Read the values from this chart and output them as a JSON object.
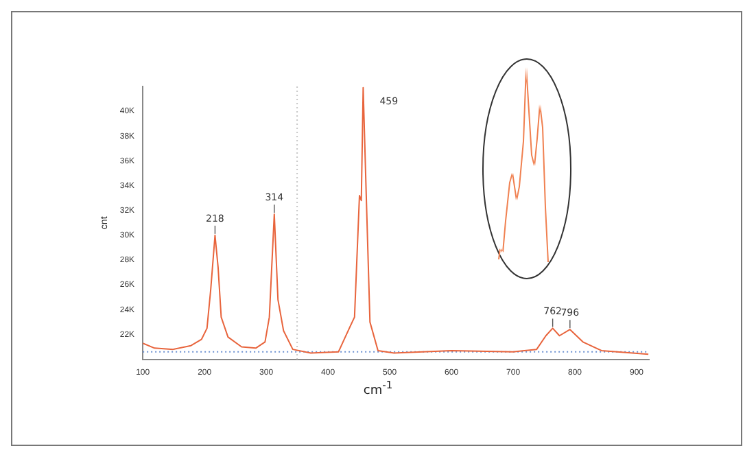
{
  "chart_data": {
    "type": "line",
    "xlabel": "cm$^{-1}$",
    "ylabel": "cnt",
    "x": [
      100,
      119,
      149,
      178,
      195,
      204,
      210,
      217,
      222,
      227,
      238,
      260,
      283,
      298,
      305,
      313,
      319,
      328,
      343,
      372,
      417,
      428,
      443,
      451,
      454,
      457,
      462,
      468,
      481,
      507,
      600,
      700,
      738,
      753,
      764,
      775,
      792,
      813,
      843,
      919
    ],
    "series": [
      {
        "color": "#e8643c",
        "values": [
          21300,
          20900,
          20800,
          21100,
          21600,
          22500,
          25600,
          30000,
          27400,
          23400,
          21800,
          21000,
          20900,
          21400,
          23400,
          31700,
          24800,
          22300,
          20800,
          20500,
          20600,
          21800,
          23400,
          33200,
          32800,
          41900,
          33200,
          23000,
          20700,
          20500,
          20700,
          20600,
          20800,
          21900,
          22500,
          21900,
          22400,
          21400,
          20700,
          20400
        ]
      }
    ],
    "xlim": [
      100,
      920
    ],
    "xticks": [
      100,
      200,
      300,
      400,
      500,
      600,
      700,
      800,
      900
    ],
    "ylim": [
      20000,
      42000
    ],
    "yticks": [
      {
        "value": 22000,
        "label": "22K"
      },
      {
        "value": 24000,
        "label": "24K"
      },
      {
        "value": 26000,
        "label": "26K"
      },
      {
        "value": 28000,
        "label": "28K"
      },
      {
        "value": 30000,
        "label": "30K"
      },
      {
        "value": 32000,
        "label": "32K"
      },
      {
        "value": 34000,
        "label": "34K"
      },
      {
        "value": 36000,
        "label": "36K"
      },
      {
        "value": 38000,
        "label": "38K"
      },
      {
        "value": 40000,
        "label": "40K"
      }
    ],
    "ref_lines": [
      {
        "axis": "y",
        "value": 20600,
        "color": "#6a8fd0",
        "line_style": "dotted"
      },
      {
        "axis": "x",
        "value": 350,
        "color": "#c8c8c8",
        "line_style": "dotted"
      }
    ],
    "annotations": [
      {
        "text": "218",
        "x": 217,
        "y": 30000
      },
      {
        "text": "314",
        "x": 313,
        "y": 31700
      },
      {
        "text": "459",
        "x": 457,
        "y": 41900
      },
      {
        "text": "762",
        "x": 764,
        "y": 22500
      },
      {
        "text": "796",
        "x": 792,
        "y": 22400
      }
    ],
    "grid": false,
    "legend": false,
    "marker": "none",
    "line_style": "solid"
  }
}
